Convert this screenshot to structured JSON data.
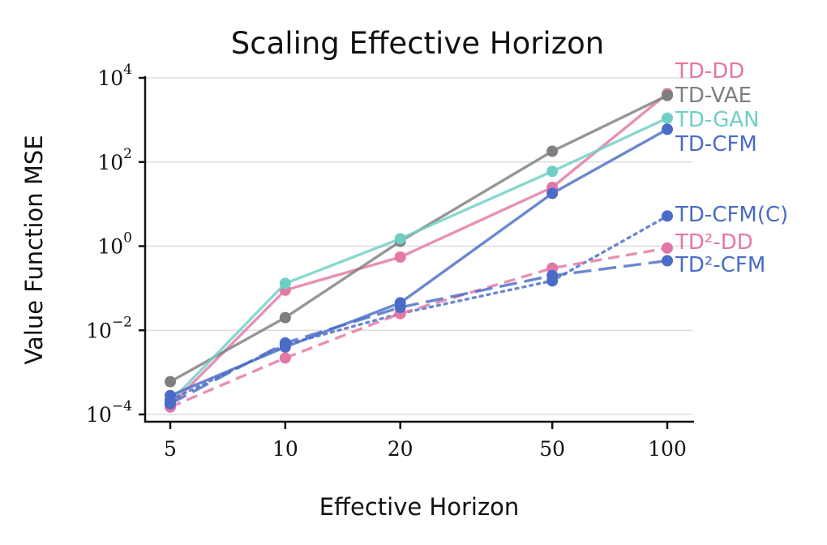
{
  "chart_data": {
    "type": "line",
    "title": "Scaling Effective Horizon",
    "xlabel": "Effective Horizon",
    "ylabel": "Value Function MSE",
    "x_scale": "log",
    "y_scale": "log",
    "x": [
      5,
      10,
      20,
      50,
      100
    ],
    "x_tick_labels": [
      "5",
      "10",
      "20",
      "50",
      "100"
    ],
    "y_ticks": [
      {
        "base": "10",
        "exp": "4",
        "value": 10000
      },
      {
        "base": "10",
        "exp": "2",
        "value": 100
      },
      {
        "base": "10",
        "exp": "0",
        "value": 1
      },
      {
        "base": "10",
        "exp": "−2",
        "value": 0.01
      },
      {
        "base": "10",
        "exp": "−4",
        "value": 0.0001
      }
    ],
    "ylim": [
      7.5e-05,
      15000
    ],
    "grid": "horizontal",
    "legend": "direct labels at line ends",
    "series": [
      {
        "name": "TD-DD",
        "color": "#e377a6",
        "style": "solid",
        "values": [
          0.00016,
          0.09,
          0.55,
          25,
          4200
        ]
      },
      {
        "name": "TD-VAE",
        "color": "#7f7f7f",
        "style": "solid",
        "values": [
          0.0006,
          0.02,
          1.3,
          180,
          3800
        ]
      },
      {
        "name": "TD-GAN",
        "color": "#6fcfc5",
        "style": "solid",
        "values": [
          0.0002,
          0.13,
          1.5,
          60,
          1100
        ]
      },
      {
        "name": "TD-CFM",
        "color": "#4a6cc6",
        "style": "solid",
        "values": [
          0.00028,
          0.004,
          0.045,
          18,
          600
        ]
      },
      {
        "name": "TD-CFM(C)",
        "color": "#4a6cc6",
        "style": "dotted",
        "values": [
          0.00022,
          0.0045,
          0.025,
          0.15,
          5.2
        ]
      },
      {
        "name": "TD²-DD",
        "color": "#e377a6",
        "style": "dashed",
        "values": [
          0.00015,
          0.0022,
          0.025,
          0.3,
          0.9
        ]
      },
      {
        "name": "TD²-CFM",
        "color": "#4a6cc6",
        "style": "longdash",
        "values": [
          0.00018,
          0.005,
          0.035,
          0.2,
          0.45
        ]
      }
    ]
  }
}
